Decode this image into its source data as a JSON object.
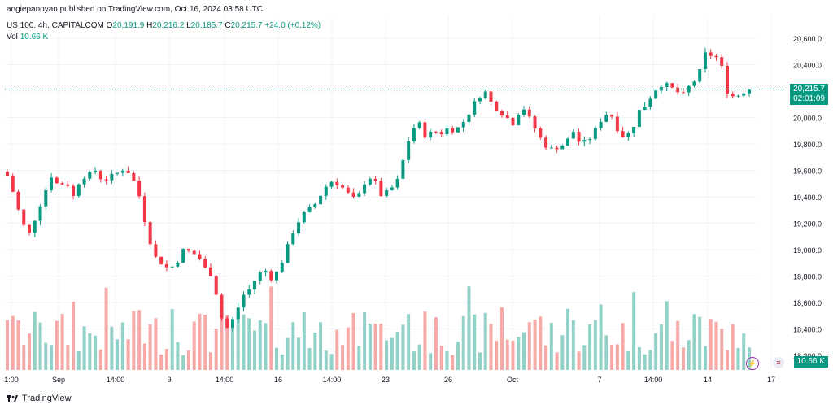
{
  "header": {
    "publisher": "angiepanoyan published on TradingView.com, Oct 16, 2024 03:58 UTC",
    "symbol": "US 100, 4h, CAPITALCOM",
    "ohlc": {
      "o_label": "O",
      "o": "20,191.9",
      "h_label": "H",
      "h": "20,216.2",
      "l_label": "L",
      "l": "20,185.7",
      "c_label": "C",
      "c": "20,215.7",
      "change": "+24.0 (+0.12%)"
    },
    "vol_label": "Vol",
    "vol_value": "10.66 K"
  },
  "price_label": {
    "price": "20,215.7",
    "countdown": "02:01:09"
  },
  "volume_label": "10.66 K",
  "brand": "TradingView",
  "colors": {
    "up": "#089981",
    "down": "#f23645",
    "vol_up": "#92d1c7",
    "vol_down": "#f7a9a8",
    "grid": "#f0f3fa"
  },
  "events": [
    {
      "icon": "lightning-icon"
    },
    {
      "icon": "us-flag-icon"
    }
  ],
  "chart_data": {
    "type": "candlestick",
    "title": "US 100, 4h, CAPITALCOM",
    "xlabel": "",
    "ylabel": "",
    "y_ticks": [
      "20,600.0",
      "20,400.0",
      "20,200.0",
      "20,000.0",
      "19,800.0",
      "19,600.0",
      "19,400.0",
      "19,200.0",
      "19,000.0",
      "18,800.0",
      "18,600.0",
      "18,400.0",
      "18,200.0"
    ],
    "ylim": [
      18170,
      20700
    ],
    "x_ticks": [
      "1:00",
      "Sep",
      "14:00",
      "9",
      "14:00",
      "16",
      "14:00",
      "23",
      "26",
      "Oct",
      "7",
      "14:00",
      "14",
      "17"
    ],
    "series": [
      {
        "name": "US 100",
        "close_anchors": [
          19560,
          19400,
          19200,
          19120,
          19270,
          19420,
          19560,
          19480,
          19520,
          19400,
          19550,
          19560,
          19600,
          19520,
          19550,
          19580,
          19620,
          19550,
          19400,
          19150,
          18950,
          18900,
          18850,
          18900,
          19000,
          18980,
          18950,
          18850,
          18800,
          18500,
          18400,
          18500,
          18650,
          18700,
          18800,
          18850,
          18780,
          18850,
          19000,
          19150,
          19250,
          19300,
          19350,
          19450,
          19520,
          19500,
          19450,
          19380,
          19420,
          19560,
          19520,
          19400,
          19450,
          19500,
          19700,
          19900,
          19960,
          19850,
          19900,
          19880,
          19920,
          19900,
          19960,
          20050,
          20150,
          20200,
          20100,
          20050,
          20000,
          19950,
          20100,
          20000,
          19900,
          19800,
          19760,
          19780,
          19800,
          19900,
          19800,
          19820,
          19900,
          20000,
          20050,
          19920,
          19850,
          19900,
          20050,
          20100,
          20200,
          20250,
          20240,
          20200,
          20170,
          20250,
          20300,
          20480,
          20470,
          20440,
          20200,
          20150,
          20190,
          20216
        ],
        "volume": "proportional bars, low tens of thousands"
      }
    ],
    "last_price": "20,215.7",
    "grid": true,
    "legend": "none"
  }
}
